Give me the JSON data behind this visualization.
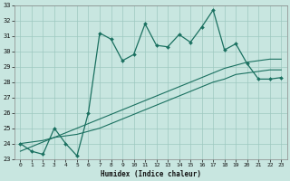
{
  "xlabel": "Humidex (Indice chaleur)",
  "bg_color": "#c8e6e0",
  "grid_color": "#9dc8c0",
  "line_color": "#1a7060",
  "x": [
    0,
    1,
    2,
    3,
    4,
    5,
    6,
    7,
    8,
    9,
    10,
    11,
    12,
    13,
    14,
    15,
    16,
    17,
    18,
    19,
    20,
    21,
    22,
    23
  ],
  "y_main": [
    24.0,
    23.5,
    23.3,
    25.0,
    24.0,
    23.2,
    26.0,
    31.2,
    30.8,
    29.4,
    29.8,
    31.8,
    30.4,
    30.3,
    31.1,
    30.6,
    31.6,
    32.7,
    30.1,
    30.5,
    29.2,
    28.2,
    28.2,
    28.3
  ],
  "y_trend1": [
    23.5,
    23.8,
    24.1,
    24.4,
    24.7,
    25.0,
    25.3,
    25.6,
    25.9,
    26.2,
    26.5,
    26.8,
    27.1,
    27.4,
    27.7,
    28.0,
    28.3,
    28.6,
    28.9,
    29.1,
    29.3,
    29.4,
    29.5,
    29.5
  ],
  "y_trend2": [
    24.0,
    24.1,
    24.2,
    24.4,
    24.5,
    24.6,
    24.8,
    25.0,
    25.3,
    25.6,
    25.9,
    26.2,
    26.5,
    26.8,
    27.1,
    27.4,
    27.7,
    28.0,
    28.2,
    28.5,
    28.6,
    28.7,
    28.8,
    28.8
  ],
  "ylim": [
    23,
    33
  ],
  "xlim": [
    -0.5,
    23.5
  ],
  "yticks": [
    23,
    24,
    25,
    26,
    27,
    28,
    29,
    30,
    31,
    32,
    33
  ],
  "xticks": [
    0,
    1,
    2,
    3,
    4,
    5,
    6,
    7,
    8,
    9,
    10,
    11,
    12,
    13,
    14,
    15,
    16,
    17,
    18,
    19,
    20,
    21,
    22,
    23
  ]
}
